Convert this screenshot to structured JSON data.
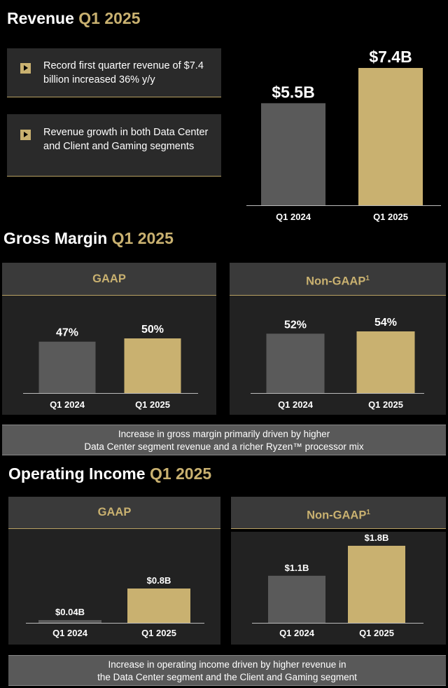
{
  "revenue": {
    "title": "Revenue",
    "period": "Q1 2025",
    "bullets": [
      {
        "text": "Record first quarter revenue of $7.4 billion increased 36% y/y"
      },
      {
        "text": "Revenue growth in both Data Center and Client and Gaming segments"
      }
    ]
  },
  "gross_margin": {
    "title": "Gross Margin",
    "period": "Q1 2025",
    "gaap_label": "GAAP",
    "nongaap_label": "Non-GAAP",
    "nongaap_sup": "1",
    "note_line1": "Increase in gross margin primarily driven by higher",
    "note_line2": "Data Center segment revenue and a richer Ryzen™ processor mix"
  },
  "operating_income": {
    "title": "Operating Income",
    "period": "Q1 2025",
    "gaap_label": "GAAP",
    "nongaap_label": "Non-GAAP",
    "nongaap_sup": "1",
    "note_line1": "Increase in operating income driven by higher revenue in",
    "note_line2": "the Data Center segment and the Client and Gaming segment"
  },
  "colors": {
    "prior": "#5a5a5a",
    "current": "#c9b170",
    "accent": "#c9b170"
  },
  "chart_data": [
    {
      "id": "revenue",
      "type": "bar",
      "categories": [
        "Q1 2024",
        "Q1 2025"
      ],
      "values": [
        5.5,
        7.4
      ],
      "value_labels": [
        "$5.5B",
        "$7.4B"
      ],
      "unit": "$B"
    },
    {
      "id": "gm-gaap",
      "type": "bar",
      "categories": [
        "Q1 2024",
        "Q1 2025"
      ],
      "values": [
        47,
        50
      ],
      "value_labels": [
        "47%",
        "50%"
      ],
      "unit": "%"
    },
    {
      "id": "gm-nongaap",
      "type": "bar",
      "categories": [
        "Q1 2024",
        "Q1 2025"
      ],
      "values": [
        52,
        54
      ],
      "value_labels": [
        "52%",
        "54%"
      ],
      "unit": "%"
    },
    {
      "id": "oi-gaap",
      "type": "bar",
      "categories": [
        "Q1 2024",
        "Q1 2025"
      ],
      "values": [
        0.04,
        0.8
      ],
      "value_labels": [
        "$0.04B",
        "$0.8B"
      ],
      "unit": "$B"
    },
    {
      "id": "oi-nongaap",
      "type": "bar",
      "categories": [
        "Q1 2024",
        "Q1 2025"
      ],
      "values": [
        1.1,
        1.8
      ],
      "value_labels": [
        "$1.1B",
        "$1.8B"
      ],
      "unit": "$B"
    }
  ]
}
